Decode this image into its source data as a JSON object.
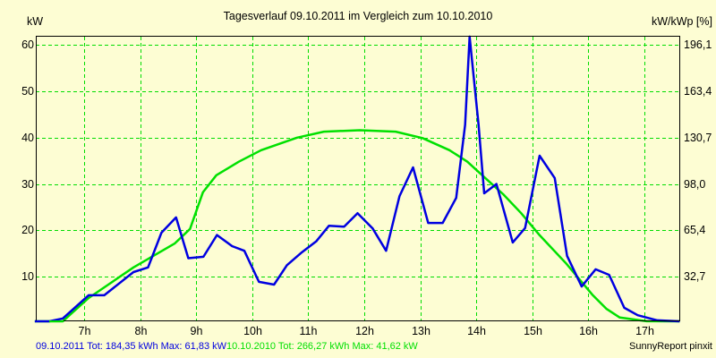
{
  "header": {
    "title": "Tagesverlauf 09.10.2011 im Vergleich zum 10.10.2010",
    "left_unit": "kW",
    "right_unit": "kW/kWp [%]"
  },
  "axes": {
    "left_ticks": [
      "60",
      "50",
      "40",
      "30",
      "20",
      "10"
    ],
    "right_ticks": [
      "196,1",
      "163,4",
      "130,7",
      "98,0",
      "65,4",
      "32,7"
    ],
    "x_ticks": [
      "7h",
      "8h",
      "9h",
      "10h",
      "11h",
      "12h",
      "13h",
      "14h",
      "15h",
      "16h",
      "17h"
    ]
  },
  "legend": {
    "series1_text": "09.10.2011 Tot: 184,35 kWh Max: 61,83 kW",
    "series2_text": "10.10.2010 Tot: 266,27 kWh Max: 41,62 kW",
    "series1_color": "#0000e0",
    "series2_color": "#00e000"
  },
  "footer": {
    "credit": "SunnyReport pinxit"
  },
  "colors": {
    "background": "#fdfdd3",
    "grid": "#00dd00",
    "axis": "#000000"
  },
  "chart_data": {
    "type": "line",
    "title": "Tagesverlauf 09.10.2011 im Vergleich zum 10.10.2010",
    "xlabel": "",
    "ylabel": "kW",
    "ylabel_right": "kW/kWp [%]",
    "ylim": [
      0,
      61.8
    ],
    "ylim_right": [
      0,
      202
    ],
    "xlim_hours": [
      6.1,
      17.65
    ],
    "grid": true,
    "legend_position": "bottom",
    "x_tick_labels": [
      "7h",
      "8h",
      "9h",
      "10h",
      "11h",
      "12h",
      "13h",
      "14h",
      "15h",
      "16h",
      "17h"
    ],
    "series": [
      {
        "name": "09.10.2011",
        "color": "#0000e0",
        "total_kwh": 184.35,
        "max_kw": 61.83,
        "x_hours": [
          6.12,
          6.38,
          6.62,
          7.08,
          7.36,
          7.88,
          8.14,
          8.38,
          8.64,
          8.86,
          9.13,
          9.37,
          9.64,
          9.86,
          10.12,
          10.39,
          10.62,
          10.89,
          11.14,
          11.37,
          11.64,
          11.88,
          12.15,
          12.39,
          12.63,
          12.87,
          13.14,
          13.4,
          13.64,
          13.8,
          13.88,
          14.04,
          14.14,
          14.36,
          14.65,
          14.87,
          15.13,
          15.4,
          15.62,
          15.88,
          16.13,
          16.37,
          16.64,
          16.88,
          17.23,
          17.63
        ],
        "values": [
          0,
          0,
          1,
          6,
          6,
          11,
          12,
          19.5,
          22.8,
          14,
          14.3,
          19,
          16.6,
          15.6,
          8.9,
          8.3,
          12.5,
          15.3,
          17.6,
          21,
          20.8,
          23.7,
          20.4,
          15.6,
          27.4,
          33.6,
          21.6,
          21.6,
          27,
          42.8,
          61.8,
          42.8,
          28.0,
          30,
          17.4,
          20.5,
          36.1,
          31.3,
          14.5,
          7.9,
          11.6,
          10.4,
          3.3,
          1.7,
          0.6,
          0
        ]
      },
      {
        "name": "10.10.2010",
        "color": "#00e000",
        "total_kwh": 266.27,
        "max_kw": 41.62,
        "x_hours": [
          6.12,
          6.36,
          6.62,
          7.08,
          7.88,
          8.62,
          8.89,
          9.12,
          9.36,
          9.76,
          10.16,
          10.8,
          11.28,
          11.92,
          12.56,
          13.04,
          13.52,
          13.84,
          14.16,
          14.48,
          14.8,
          15.12,
          15.6,
          16.08,
          16.32,
          16.56,
          17.04,
          17.63
        ],
        "values": [
          0,
          0,
          0,
          5.4,
          12,
          17.2,
          20.3,
          28.2,
          31.9,
          34.8,
          37.3,
          40.0,
          41.3,
          41.6,
          41.3,
          39.9,
          37.3,
          34.8,
          31.3,
          27.8,
          23.7,
          19.1,
          12.9,
          6.0,
          3.1,
          1.2,
          0.4,
          0
        ]
      }
    ]
  }
}
